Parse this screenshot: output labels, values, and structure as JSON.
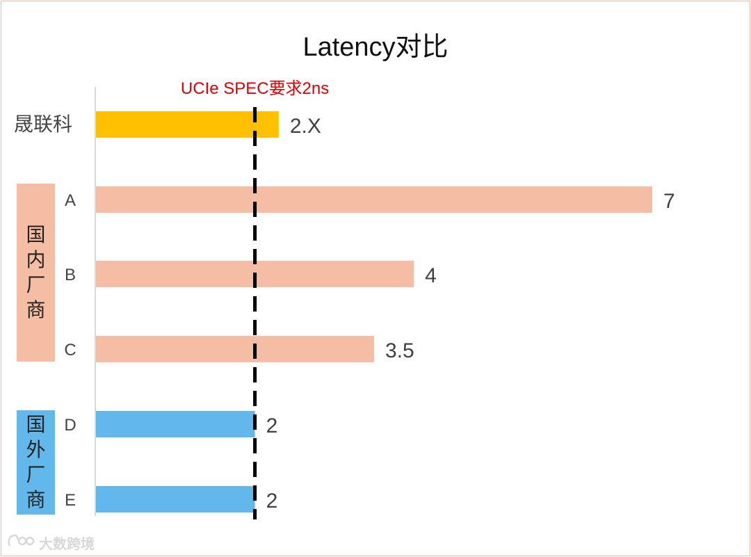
{
  "chart_data": {
    "type": "bar",
    "orientation": "horizontal",
    "title": "Latency对比",
    "categories": [
      "晟联科",
      "A",
      "B",
      "C",
      "D",
      "E"
    ],
    "values": [
      2.3,
      7,
      4,
      3.5,
      2,
      2
    ],
    "value_labels": [
      "2.X",
      "7",
      "4",
      "3.5",
      "2",
      "2"
    ],
    "bar_colors": [
      "#ffc000",
      "#f5bda3",
      "#f5bda3",
      "#f5bda3",
      "#62b8ea",
      "#62b8ea"
    ],
    "groups": [
      {
        "name": "国内厂商",
        "members": [
          "A",
          "B",
          "C"
        ],
        "color": "#f5bda3"
      },
      {
        "name": "国外厂商",
        "members": [
          "D",
          "E"
        ],
        "color": "#62b8ea"
      }
    ],
    "reference_line": {
      "value": 2,
      "label": "UCIe SPEC要求2ns",
      "color": "#e00000",
      "style": "dashed"
    },
    "xlim": [
      0,
      7
    ],
    "xlabel": "",
    "ylabel": "",
    "grid": false,
    "legend": "none"
  },
  "watermark": "大数跨境"
}
